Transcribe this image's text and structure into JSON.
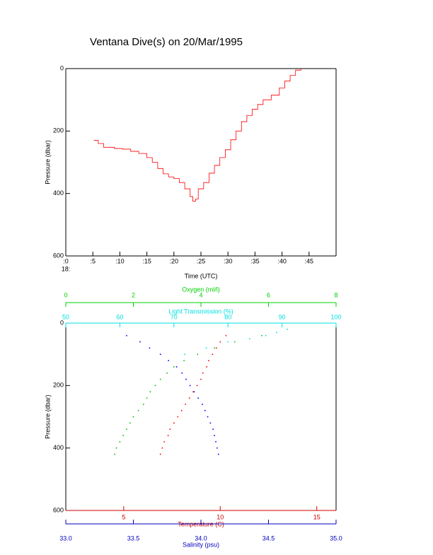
{
  "title": "Ventana Dive(s) on 20/Mar/1995",
  "chart_data": [
    {
      "type": "line",
      "step": true,
      "color": "#ff0000",
      "xlabel": "Time (UTC)",
      "ylabel": "Pressure (dbar)",
      "xtick_sublabel": "18:",
      "xlim": [
        0,
        50
      ],
      "ylim": [
        0,
        600
      ],
      "y_inverted": true,
      "xticks": [
        {
          "value": 0,
          "label": ":0"
        },
        {
          "value": 5,
          "label": ":5"
        },
        {
          "value": 10,
          "label": ":10"
        },
        {
          "value": 15,
          "label": ":15"
        },
        {
          "value": 20,
          "label": ":20"
        },
        {
          "value": 25,
          "label": ":25"
        },
        {
          "value": 30,
          "label": ":30"
        },
        {
          "value": 35,
          "label": ":35"
        },
        {
          "value": 40,
          "label": ":40"
        },
        {
          "value": 45,
          "label": ":45"
        }
      ],
      "yticks": [
        0,
        200,
        400,
        600
      ],
      "x": [
        5.2,
        6,
        7,
        9,
        10.5,
        12,
        13.5,
        15,
        16,
        17,
        18,
        19,
        20,
        21,
        22,
        23,
        23.5,
        24,
        24.5,
        25.5,
        26.5,
        27.5,
        28.5,
        29.5,
        30.5,
        31.5,
        32.5,
        33.5,
        34.5,
        35.5,
        36.5,
        38,
        39.5,
        40.5,
        41.5,
        42.5,
        43.5
      ],
      "values": [
        230,
        240,
        252,
        256,
        258,
        265,
        272,
        285,
        300,
        320,
        337,
        347,
        352,
        365,
        385,
        410,
        425,
        418,
        385,
        365,
        335,
        310,
        285,
        260,
        228,
        200,
        170,
        150,
        130,
        115,
        100,
        85,
        62,
        40,
        22,
        5,
        0
      ]
    },
    {
      "type": "scatter",
      "ylabel": "Pressure (dbar)",
      "ylim": [
        0,
        600
      ],
      "y_inverted": true,
      "yticks": [
        0,
        200,
        400,
        600
      ],
      "x_axes": [
        {
          "label": "Temperature (C)",
          "color": "#d00000",
          "xlim": [
            2,
            16
          ],
          "xticks": [
            5,
            10,
            15
          ]
        },
        {
          "label": "Salinity (psu)",
          "color": "#0000c0",
          "xlim": [
            33,
            35
          ],
          "xticks": [
            {
              "value": 33,
              "label": "33.0"
            },
            33.5,
            {
              "value": 34,
              "label": "34.0"
            },
            34.5,
            {
              "value": 35,
              "label": "35.0"
            }
          ]
        },
        {
          "label": "Oxygen (ml/l)",
          "color": "#00d000",
          "xlim": [
            0,
            8
          ],
          "xticks": [
            0,
            2,
            4,
            6,
            8
          ]
        },
        {
          "label": "Light Transmission (%)",
          "color": "#00e0e0",
          "xlim": [
            50,
            100
          ],
          "xticks": [
            50,
            60,
            70,
            80,
            90,
            100
          ]
        }
      ],
      "series": [
        {
          "x_axis": 0,
          "color": "#ff0000",
          "x": [
            10.3,
            10.0,
            9.8,
            9.6,
            9.4,
            9.3,
            9.1,
            9.0,
            8.8,
            8.6,
            8.4,
            8.2,
            8.0,
            7.8,
            7.6,
            7.4,
            7.3,
            7.1,
            7.0,
            6.9
          ],
          "values": [
            40,
            60,
            80,
            100,
            120,
            140,
            160,
            180,
            200,
            220,
            240,
            260,
            280,
            300,
            320,
            340,
            360,
            380,
            400,
            420
          ]
        },
        {
          "x_axis": 1,
          "color": "#0000ff",
          "x": [
            33.45,
            33.55,
            33.62,
            33.7,
            33.76,
            33.82,
            33.86,
            33.89,
            33.92,
            33.95,
            33.98,
            34.01,
            34.03,
            34.05,
            34.07,
            34.09,
            34.1,
            34.11,
            34.12,
            34.13
          ],
          "values": [
            40,
            60,
            80,
            100,
            120,
            140,
            160,
            180,
            200,
            220,
            240,
            260,
            280,
            300,
            320,
            340,
            360,
            380,
            400,
            420
          ]
        },
        {
          "x_axis": 2,
          "color": "#00c000",
          "x": [
            5.8,
            5.0,
            4.4,
            3.9,
            3.5,
            3.2,
            3.0,
            2.8,
            2.65,
            2.5,
            2.4,
            2.3,
            2.15,
            2.0,
            1.9,
            1.8,
            1.7,
            1.6,
            1.5,
            1.45
          ],
          "values": [
            40,
            60,
            80,
            100,
            120,
            140,
            160,
            180,
            200,
            220,
            240,
            260,
            280,
            300,
            320,
            340,
            360,
            380,
            400,
            420
          ]
        },
        {
          "x_axis": 3,
          "color": "#00e0e0",
          "x": [
            91,
            89,
            87,
            84,
            80,
            76,
            72
          ],
          "values": [
            20,
            30,
            40,
            50,
            60,
            80,
            100
          ]
        }
      ]
    }
  ]
}
